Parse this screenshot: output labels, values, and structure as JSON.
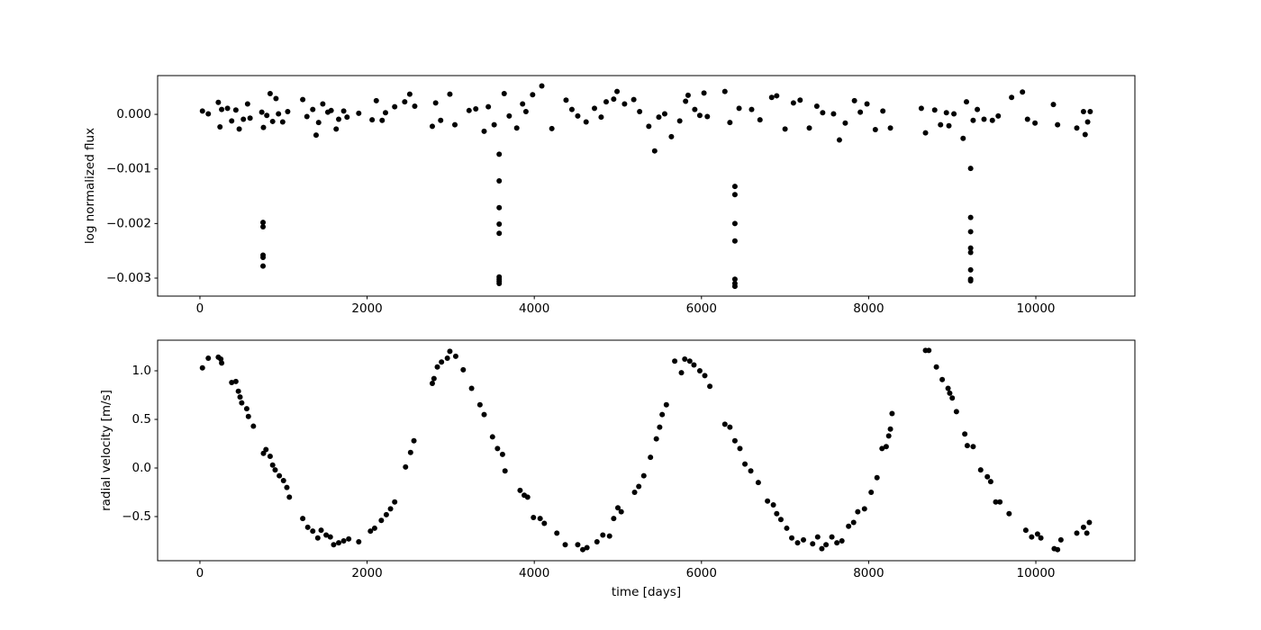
{
  "chart_data": [
    {
      "type": "scatter",
      "ylabel": "log normalized flux",
      "color": "#000000",
      "xlim": [
        -506,
        11185
      ],
      "xticks": [
        0,
        2000,
        4000,
        6000,
        8000,
        10000
      ],
      "ylim": [
        -0.00333,
        0.00071
      ],
      "yticks": [
        {
          "value": 0,
          "label": "0.000"
        },
        {
          "value": -0.001,
          "label": "−0.001"
        },
        {
          "value": -0.002,
          "label": "−0.002"
        },
        {
          "value": -0.003,
          "label": "−0.003"
        }
      ],
      "x": [
        30,
        100,
        220,
        240,
        260,
        330,
        380,
        430,
        470,
        520,
        570,
        600,
        740,
        755,
        755,
        755,
        755,
        755,
        760,
        800,
        840,
        870,
        910,
        940,
        990,
        1050,
        1230,
        1280,
        1350,
        1390,
        1420,
        1470,
        1530,
        1570,
        1630,
        1660,
        1720,
        1760,
        1900,
        2060,
        2110,
        2180,
        2220,
        2330,
        2450,
        2510,
        2570,
        2780,
        2820,
        2880,
        2990,
        3050,
        3220,
        3300,
        3400,
        3450,
        3520,
        3580,
        3580,
        3580,
        3580,
        3580,
        3580,
        3580,
        3580,
        3580,
        3640,
        3700,
        3790,
        3860,
        3900,
        3980,
        4090,
        4210,
        4380,
        4450,
        4520,
        4620,
        4720,
        4800,
        4860,
        4950,
        4990,
        5080,
        5190,
        5260,
        5370,
        5440,
        5490,
        5560,
        5640,
        5740,
        5810,
        5840,
        5920,
        5980,
        6030,
        6070,
        6280,
        6340,
        6400,
        6400,
        6400,
        6400,
        6400,
        6400,
        6400,
        6450,
        6600,
        6700,
        6840,
        6900,
        7000,
        7100,
        7180,
        7290,
        7380,
        7450,
        7580,
        7650,
        7720,
        7830,
        7900,
        7980,
        8080,
        8170,
        8260,
        8630,
        8680,
        8790,
        8860,
        8930,
        8960,
        9020,
        9130,
        9170,
        9220,
        9220,
        9220,
        9220,
        9220,
        9220,
        9220,
        9220,
        9250,
        9300,
        9380,
        9480,
        9550,
        9710,
        9840,
        9900,
        9990,
        10210,
        10260,
        10490,
        10570,
        10590,
        10620,
        10650
      ],
      "values": [
        6e-05,
        1e-05,
        0.00022,
        -0.00023,
        9e-05,
        0.00011,
        -0.00012,
        8e-05,
        -0.00027,
        -9e-05,
        0.00019,
        -7e-05,
        4e-05,
        -0.00198,
        -0.00206,
        -0.00262,
        -0.00258,
        -0.00278,
        -0.00024,
        -2e-05,
        0.00038,
        -0.00013,
        0.00029,
        1e-05,
        -0.00014,
        5e-05,
        0.00027,
        -4e-05,
        9e-05,
        -0.00038,
        -0.00015,
        0.00019,
        4e-05,
        7e-05,
        -0.00027,
        -9e-05,
        6e-05,
        -5e-05,
        2e-05,
        -0.0001,
        0.00025,
        -0.00011,
        3e-05,
        0.00014,
        0.00023,
        0.00037,
        0.00015,
        -0.00022,
        0.00021,
        -0.00011,
        0.00037,
        -0.00019,
        7e-05,
        0.0001,
        -0.00031,
        0.00014,
        -0.00019,
        -0.00073,
        -0.00122,
        -0.00171,
        -0.00201,
        -0.00218,
        -0.00298,
        -0.00302,
        -0.00306,
        -0.0031,
        0.00038,
        -3e-05,
        -0.00025,
        0.00019,
        5e-05,
        0.00036,
        0.00052,
        -0.00026,
        0.00026,
        9e-05,
        -3e-05,
        -0.00014,
        0.00011,
        -5e-05,
        0.00023,
        0.00028,
        0.00042,
        0.00019,
        0.00027,
        5e-05,
        -0.00022,
        -0.00067,
        -5e-05,
        1e-05,
        -0.00041,
        -0.00012,
        0.00024,
        0.00035,
        9e-05,
        -2e-05,
        0.00039,
        -4e-05,
        0.00042,
        -0.00015,
        -0.00132,
        -0.00147,
        -0.002,
        -0.00232,
        -0.00302,
        -0.0031,
        -0.00315,
        0.00011,
        9e-05,
        -0.0001,
        0.00031,
        0.00034,
        -0.00027,
        0.00021,
        0.00026,
        -0.00025,
        0.00015,
        3e-05,
        1e-05,
        -0.00047,
        -0.00016,
        0.00025,
        4e-05,
        0.00019,
        -0.00028,
        6e-05,
        -0.00025,
        0.00011,
        -0.00034,
        8e-05,
        -0.00019,
        3e-05,
        -0.00021,
        1e-05,
        -0.00044,
        0.00023,
        -0.00099,
        -0.00189,
        -0.00215,
        -0.00245,
        -0.00253,
        -0.00285,
        -0.00302,
        -0.00305,
        -0.00011,
        9e-05,
        -9e-05,
        -0.00011,
        -3e-05,
        0.00031,
        0.00041,
        -9e-05,
        -0.00016,
        0.00018,
        -0.00019,
        -0.00025,
        5e-05,
        -0.00037,
        -0.00014,
        5e-05
      ]
    },
    {
      "type": "scatter",
      "ylabel": "radial velocity [m/s]",
      "xlabel": "time [days]",
      "color": "#000000",
      "xlim": [
        -506,
        11185
      ],
      "xticks": [
        0,
        2000,
        4000,
        6000,
        8000,
        10000
      ],
      "ylim": [
        -0.954,
        1.315
      ],
      "yticks": [
        {
          "value": 1,
          "label": "1.0"
        },
        {
          "value": 0.5,
          "label": "0.5"
        },
        {
          "value": 0,
          "label": "0.0"
        },
        {
          "value": -0.5,
          "label": "−0.5"
        }
      ],
      "x": [
        30,
        100,
        220,
        250,
        260,
        380,
        430,
        460,
        480,
        500,
        560,
        580,
        640,
        760,
        790,
        840,
        870,
        900,
        950,
        1000,
        1040,
        1070,
        1230,
        1290,
        1350,
        1410,
        1450,
        1510,
        1560,
        1600,
        1660,
        1720,
        1780,
        1900,
        2040,
        2090,
        2170,
        2230,
        2280,
        2330,
        2460,
        2520,
        2560,
        2780,
        2800,
        2840,
        2890,
        2960,
        2990,
        3060,
        3150,
        3250,
        3350,
        3400,
        3500,
        3560,
        3620,
        3650,
        3830,
        3880,
        3920,
        3990,
        4070,
        4120,
        4270,
        4370,
        4520,
        4580,
        4630,
        4750,
        4820,
        4900,
        4950,
        5000,
        5040,
        5200,
        5250,
        5310,
        5390,
        5460,
        5500,
        5530,
        5580,
        5680,
        5760,
        5800,
        5860,
        5910,
        5980,
        6040,
        6100,
        6280,
        6340,
        6400,
        6460,
        6520,
        6590,
        6680,
        6790,
        6860,
        6900,
        6950,
        7020,
        7080,
        7150,
        7220,
        7330,
        7390,
        7440,
        7490,
        7560,
        7620,
        7680,
        7760,
        7820,
        7870,
        7950,
        8030,
        8100,
        8160,
        8210,
        8240,
        8260,
        8280,
        8680,
        8720,
        8810,
        8880,
        8950,
        8970,
        9000,
        9050,
        9150,
        9180,
        9250,
        9340,
        9420,
        9460,
        9520,
        9570,
        9680,
        9880,
        9950,
        10020,
        10060,
        10220,
        10260,
        10300,
        10490,
        10570,
        10610,
        10640
      ],
      "values": [
        1.03,
        1.13,
        1.14,
        1.12,
        1.08,
        0.88,
        0.89,
        0.79,
        0.73,
        0.67,
        0.61,
        0.53,
        0.43,
        0.15,
        0.19,
        0.12,
        0.03,
        -0.02,
        -0.08,
        -0.13,
        -0.2,
        -0.3,
        -0.52,
        -0.61,
        -0.65,
        -0.72,
        -0.64,
        -0.69,
        -0.71,
        -0.79,
        -0.77,
        -0.75,
        -0.73,
        -0.76,
        -0.65,
        -0.62,
        -0.54,
        -0.48,
        -0.42,
        -0.35,
        0.01,
        0.16,
        0.28,
        0.87,
        0.92,
        1.04,
        1.09,
        1.13,
        1.2,
        1.15,
        1.01,
        0.82,
        0.65,
        0.55,
        0.32,
        0.2,
        0.14,
        -0.03,
        -0.23,
        -0.28,
        -0.3,
        -0.51,
        -0.52,
        -0.57,
        -0.67,
        -0.79,
        -0.79,
        -0.84,
        -0.82,
        -0.76,
        -0.69,
        -0.7,
        -0.52,
        -0.41,
        -0.45,
        -0.25,
        -0.19,
        -0.08,
        0.11,
        0.3,
        0.42,
        0.55,
        0.65,
        1.1,
        0.98,
        1.12,
        1.1,
        1.06,
        1.0,
        0.95,
        0.84,
        0.45,
        0.42,
        0.28,
        0.2,
        0.04,
        -0.03,
        -0.15,
        -0.34,
        -0.38,
        -0.47,
        -0.53,
        -0.62,
        -0.72,
        -0.77,
        -0.74,
        -0.78,
        -0.71,
        -0.83,
        -0.79,
        -0.71,
        -0.77,
        -0.75,
        -0.6,
        -0.56,
        -0.45,
        -0.42,
        -0.25,
        -0.1,
        0.2,
        0.22,
        0.33,
        0.4,
        0.56,
        1.21,
        1.21,
        1.04,
        0.91,
        0.82,
        0.77,
        0.72,
        0.58,
        0.35,
        0.23,
        0.22,
        -0.02,
        -0.09,
        -0.14,
        -0.35,
        -0.35,
        -0.47,
        -0.64,
        -0.71,
        -0.68,
        -0.72,
        -0.83,
        -0.84,
        -0.74,
        -0.67,
        -0.61,
        -0.67,
        -0.56
      ]
    }
  ]
}
